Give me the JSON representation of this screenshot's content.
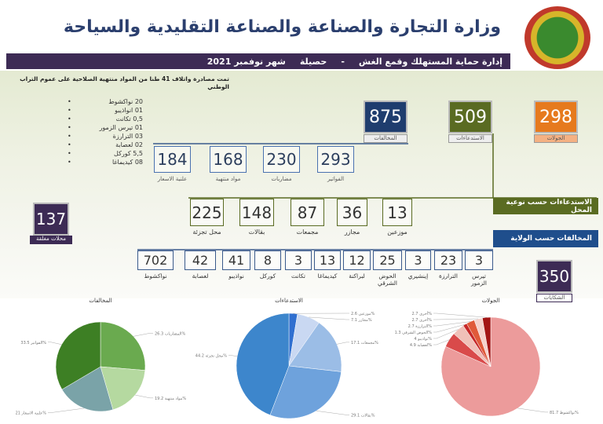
{
  "header": {
    "title": "وزارة التجارة والصناعة والصناعة التقليدية والسياحة",
    "dept": "إدارة حماية المستهلك وقمع الغش",
    "sep": "-",
    "report": "حصيلة",
    "period": "شهر نوفمبر 2021"
  },
  "seizure": {
    "headline": "تمت مصادرة واتلاف 41 طنا من المواد منتهية الصلاحية على عموم التراب الوطني",
    "items": [
      "20 نواكشوط",
      "01 انواذيبو",
      "0,5 تكانت",
      "01 تيرس الزمور",
      "03 الترارزة",
      "02 لعصابة",
      "5,5 كوركل",
      "08 كيديماغا"
    ]
  },
  "totals": [
    {
      "value": "875",
      "label": "المخالفات",
      "color": "#1f3d6e"
    },
    {
      "value": "509",
      "label": "الاستدعاءات",
      "color": "#5a6b22"
    },
    {
      "value": "298",
      "label": "الجولات",
      "color": "#e67a1e"
    }
  ],
  "violations": [
    {
      "value": "184",
      "label": "علنية الاسعار"
    },
    {
      "value": "168",
      "label": "مواد منتهية"
    },
    {
      "value": "230",
      "label": "مضاربات"
    },
    {
      "value": "293",
      "label": "الفواتير"
    }
  ],
  "summons_title": "الاستدعاءات حسب نوعية المحل",
  "summons": [
    {
      "value": "225",
      "label": "محل تجزئة"
    },
    {
      "value": "148",
      "label": "بقالات"
    },
    {
      "value": "87",
      "label": "مجمعات"
    },
    {
      "value": "36",
      "label": "مجازر"
    },
    {
      "value": "13",
      "label": "موزعين"
    }
  ],
  "closed": {
    "value": "137",
    "label": "محلات مغلقة"
  },
  "region_title": "المخالفات حسب الولاية",
  "regions": [
    {
      "value": "702",
      "label": "نواكشوط"
    },
    {
      "value": "42",
      "label": "لعصابة"
    },
    {
      "value": "41",
      "label": "نواذيبو"
    },
    {
      "value": "8",
      "label": "كوركل"
    },
    {
      "value": "3",
      "label": "تكانت"
    },
    {
      "value": "13",
      "label": "كيديماغا"
    },
    {
      "value": "12",
      "label": "لبراكنة"
    },
    {
      "value": "25",
      "label": "الحوض الشرقي"
    },
    {
      "value": "3",
      "label": "إينشيري"
    },
    {
      "value": "23",
      "label": "الترارزة"
    },
    {
      "value": "3",
      "label": "تيرس الزمور"
    }
  ],
  "complaints": {
    "value": "350",
    "label": "الشكايات"
  },
  "chart_data": [
    {
      "type": "pie",
      "title": "المخالفات",
      "labels": [
        "المضاربات",
        "مواد منتهية",
        "علنية الاسعار",
        "الفواتير"
      ],
      "values": [
        26.3,
        19.2,
        21.0,
        33.5
      ],
      "colors": [
        "#6aaa4f",
        "#b5d9a0",
        "#7aa3a8",
        "#3d7f24"
      ]
    },
    {
      "type": "pie",
      "title": "الاستدعاءات",
      "labels": [
        "موزعين",
        "مجازر",
        "مجمعات",
        "بقالات",
        "محل تجزئة"
      ],
      "values": [
        2.6,
        7.1,
        17.1,
        29.1,
        44.2
      ],
      "colors": [
        "#2f6fd0",
        "#c9d8f2",
        "#9bbde6",
        "#6ea2dc",
        "#3d86cc"
      ]
    },
    {
      "type": "pie",
      "title": "الجولات",
      "labels": [
        "نواكشوط",
        "لعصابة",
        "نواذيبو",
        "الحوض الشرقي",
        "الترارزة",
        "أخرى",
        "أخرى"
      ],
      "values": [
        81.7,
        4.9,
        4.0,
        1.3,
        2.7,
        2.7,
        2.7
      ],
      "colors": [
        "#ec9b9b",
        "#d94a4a",
        "#f0c0b8",
        "#c62828",
        "#e05a3a",
        "#f5d2cc",
        "#a31515"
      ]
    }
  ]
}
